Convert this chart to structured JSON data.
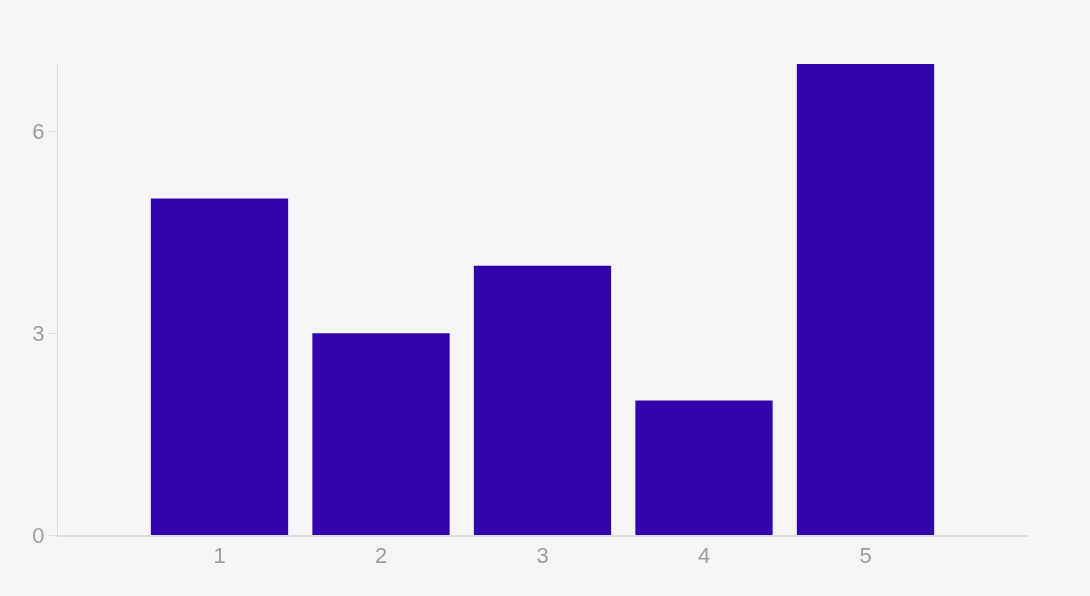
{
  "chart_data": {
    "type": "bar",
    "x": [
      1,
      2,
      3,
      4,
      5
    ],
    "values": [
      5,
      3,
      4,
      2,
      7
    ],
    "color": "#3104ab",
    "xlim": [
      0,
      6
    ],
    "xticks": [
      1,
      2,
      3,
      4,
      5
    ],
    "ylim": [
      0,
      7
    ],
    "yticks": [
      0,
      3,
      6
    ],
    "grid": false
  }
}
